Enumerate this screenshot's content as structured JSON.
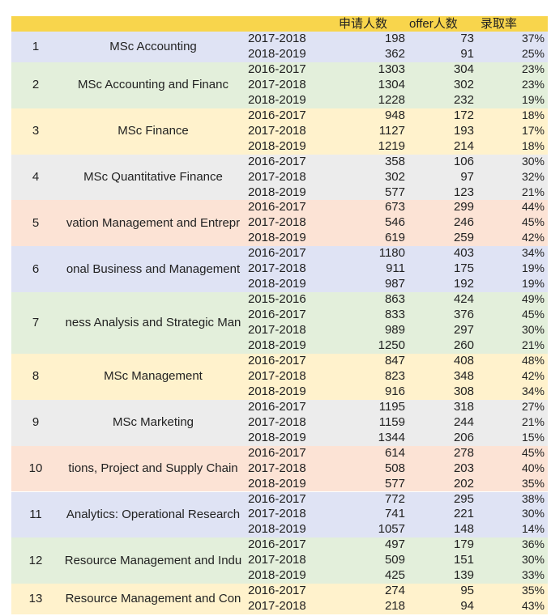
{
  "header": [
    "申请人数",
    "offer人数",
    "录取率"
  ],
  "groups": [
    {
      "no": "1",
      "name": "MSc Accounting",
      "rows": [
        [
          "2017-2018",
          198,
          73,
          "37%"
        ],
        [
          "2018-2019",
          362,
          91,
          "25%"
        ]
      ]
    },
    {
      "no": "2",
      "name": "MSc Accounting and Financ",
      "rows": [
        [
          "2016-2017",
          1303,
          304,
          "23%"
        ],
        [
          "2017-2018",
          1304,
          302,
          "23%"
        ],
        [
          "2018-2019",
          1228,
          232,
          "19%"
        ]
      ]
    },
    {
      "no": "3",
      "name": "MSc Finance",
      "rows": [
        [
          "2016-2017",
          948,
          172,
          "18%"
        ],
        [
          "2017-2018",
          1127,
          193,
          "17%"
        ],
        [
          "2018-2019",
          1219,
          214,
          "18%"
        ]
      ]
    },
    {
      "no": "4",
      "name": "MSc Quantitative Finance",
      "rows": [
        [
          "2016-2017",
          358,
          106,
          "30%"
        ],
        [
          "2017-2018",
          302,
          97,
          "32%"
        ],
        [
          "2018-2019",
          577,
          123,
          "21%"
        ]
      ]
    },
    {
      "no": "5",
      "name": "vation Management and Entrepr",
      "rows": [
        [
          "2016-2017",
          673,
          299,
          "44%"
        ],
        [
          "2017-2018",
          546,
          246,
          "45%"
        ],
        [
          "2018-2019",
          619,
          259,
          "42%"
        ]
      ]
    },
    {
      "no": "6",
      "name": "onal Business and Management",
      "rows": [
        [
          "2016-2017",
          1180,
          403,
          "34%"
        ],
        [
          "2017-2018",
          911,
          175,
          "19%"
        ],
        [
          "2018-2019",
          987,
          192,
          "19%"
        ]
      ]
    },
    {
      "no": "7",
      "name": "ness Analysis and Strategic Man",
      "rows": [
        [
          "2015-2016",
          863,
          424,
          "49%"
        ],
        [
          "2016-2017",
          833,
          376,
          "45%"
        ],
        [
          "2017-2018",
          989,
          297,
          "30%"
        ],
        [
          "2018-2019",
          1250,
          260,
          "21%"
        ]
      ]
    },
    {
      "no": "8",
      "name": "MSc Management",
      "rows": [
        [
          "2016-2017",
          847,
          408,
          "48%"
        ],
        [
          "2017-2018",
          823,
          348,
          "42%"
        ],
        [
          "2018-2019",
          916,
          308,
          "34%"
        ]
      ]
    },
    {
      "no": "9",
      "name": "MSc Marketing",
      "rows": [
        [
          "2016-2017",
          1195,
          318,
          "27%"
        ],
        [
          "2017-2018",
          1159,
          244,
          "21%"
        ],
        [
          "2018-2019",
          1344,
          206,
          "15%"
        ]
      ]
    },
    {
      "no": "10",
      "name": "tions, Project and Supply Chain",
      "rows": [
        [
          "2016-2017",
          614,
          278,
          "45%"
        ],
        [
          "2017-2018",
          508,
          203,
          "40%"
        ],
        [
          "2018-2019",
          577,
          202,
          "35%"
        ]
      ]
    },
    {
      "no": "11",
      "name": "Analytics: Operational Research",
      "rows": [
        [
          "2016-2017",
          772,
          295,
          "38%"
        ],
        [
          "2017-2018",
          741,
          221,
          "30%"
        ],
        [
          "2018-2019",
          1057,
          148,
          "14%"
        ]
      ]
    },
    {
      "no": "12",
      "name": "Resource Management and Indu",
      "rows": [
        [
          "2016-2017",
          497,
          179,
          "36%"
        ],
        [
          "2017-2018",
          509,
          151,
          "30%"
        ],
        [
          "2018-2019",
          425,
          139,
          "33%"
        ]
      ]
    },
    {
      "no": "13",
      "name": "Resource Management and Con",
      "rows": [
        [
          "2016-2017",
          274,
          95,
          "35%"
        ],
        [
          "2017-2018",
          218,
          94,
          "43%"
        ]
      ]
    }
  ]
}
